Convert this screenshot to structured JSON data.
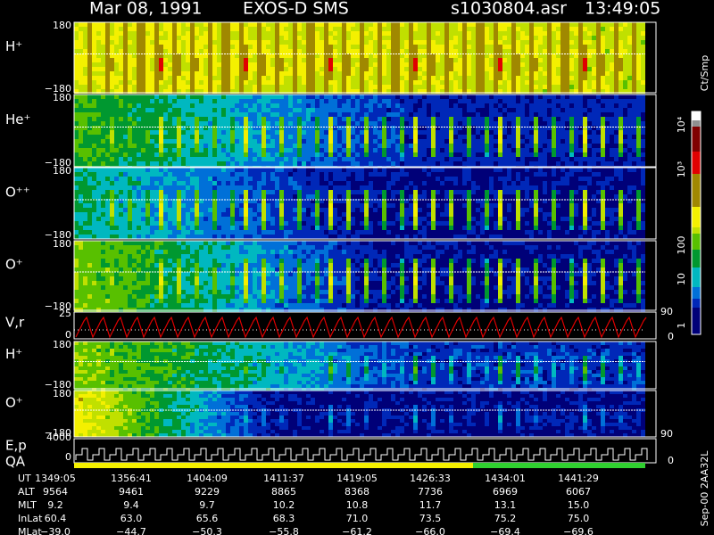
{
  "header": {
    "date": "Mar 08, 1991",
    "instrument": "EXOS-D SMS",
    "file": "s1030804.asr",
    "time": "13:49:05"
  },
  "panels": [
    {
      "ion": "H⁺",
      "top": "180",
      "bottom": "−180"
    },
    {
      "ion": "He⁺",
      "top": "180",
      "bottom": "−180"
    },
    {
      "ion": "O⁺⁺",
      "top": "180",
      "bottom": "−180"
    },
    {
      "ion": "O⁺",
      "top": "180",
      "bottom": "−180"
    },
    {
      "ion": "H⁺",
      "top": "180",
      "bottom": "−180"
    },
    {
      "ion": "O⁺",
      "top": "180",
      "bottom": "−180"
    }
  ],
  "vr": {
    "label": "V,r",
    "top": "25",
    "bottom": "0",
    "right_top": "90",
    "right_bottom": "0"
  },
  "ep": {
    "label": "E,p",
    "label2": "QA",
    "top": "4000",
    "bottom": "0",
    "right_top": "90",
    "right_bottom": "0"
  },
  "colorbar": {
    "unit": "Ct/Smp",
    "labels": [
      "10⁴",
      "10³",
      "100",
      "10",
      "1"
    ]
  },
  "footer": {
    "rows": [
      {
        "label": "UT",
        "values": [
          "1349:05",
          "1356:41",
          "1404:09",
          "1411:37",
          "1419:05",
          "1426:33",
          "1434:01",
          "1441:29"
        ]
      },
      {
        "label": "ALT",
        "values": [
          "9564",
          "9461",
          "9229",
          "8865",
          "8368",
          "7736",
          "6969",
          "6067"
        ]
      },
      {
        "label": "MLT",
        "values": [
          "9.2",
          "9.4",
          "9.7",
          "10.2",
          "10.8",
          "11.7",
          "13.1",
          "15.0"
        ]
      },
      {
        "label": "InLat",
        "values": [
          "60.4",
          "63.0",
          "65.6",
          "68.3",
          "71.0",
          "73.5",
          "75.2",
          "75.0"
        ]
      },
      {
        "label": "MLat",
        "values": [
          "−39.0",
          "−44.7",
          "−50.3",
          "−55.8",
          "−61.2",
          "−66.0",
          "−69.4",
          "−69.6"
        ]
      }
    ]
  },
  "stamp": "Sep-00  2AA32L"
}
